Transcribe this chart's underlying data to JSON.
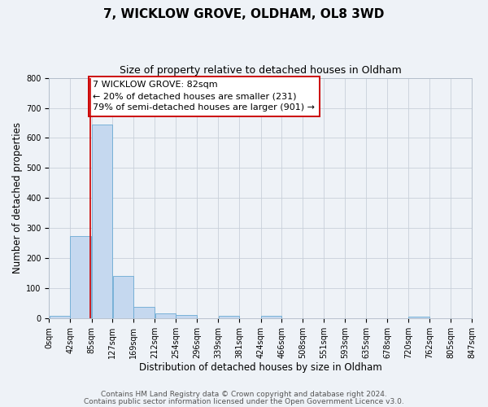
{
  "title": "7, WICKLOW GROVE, OLDHAM, OL8 3WD",
  "subtitle": "Size of property relative to detached houses in Oldham",
  "xlabel": "Distribution of detached houses by size in Oldham",
  "ylabel": "Number of detached properties",
  "bar_left_edges": [
    0,
    42,
    85,
    127,
    169,
    212,
    254,
    296,
    339,
    381,
    424,
    466,
    508,
    551,
    593,
    635,
    678,
    720,
    762,
    805
  ],
  "bar_heights": [
    8,
    275,
    645,
    140,
    38,
    18,
    12,
    0,
    10,
    0,
    8,
    0,
    0,
    0,
    0,
    0,
    0,
    6,
    0,
    0
  ],
  "bin_width": 42,
  "bar_color": "#c5d8ef",
  "bar_edge_color": "#6aaad4",
  "ylim": [
    0,
    800
  ],
  "yticks": [
    0,
    100,
    200,
    300,
    400,
    500,
    600,
    700,
    800
  ],
  "xtick_labels": [
    "0sqm",
    "42sqm",
    "85sqm",
    "127sqm",
    "169sqm",
    "212sqm",
    "254sqm",
    "296sqm",
    "339sqm",
    "381sqm",
    "424sqm",
    "466sqm",
    "508sqm",
    "551sqm",
    "593sqm",
    "635sqm",
    "678sqm",
    "720sqm",
    "762sqm",
    "805sqm",
    "847sqm"
  ],
  "xtick_positions": [
    0,
    42,
    85,
    127,
    169,
    212,
    254,
    296,
    339,
    381,
    424,
    466,
    508,
    551,
    593,
    635,
    678,
    720,
    762,
    805,
    847
  ],
  "xlim": [
    0,
    847
  ],
  "vline_x": 82,
  "vline_color": "#cc0000",
  "annotation_text": "7 WICKLOW GROVE: 82sqm\n← 20% of detached houses are smaller (231)\n79% of semi-detached houses are larger (901) →",
  "box_color": "#ffffff",
  "box_edge_color": "#cc0000",
  "grid_color": "#c8d0da",
  "bg_color": "#eef2f7",
  "footer_line1": "Contains HM Land Registry data © Crown copyright and database right 2024.",
  "footer_line2": "Contains public sector information licensed under the Open Government Licence v3.0.",
  "title_fontsize": 11,
  "subtitle_fontsize": 9,
  "axis_label_fontsize": 8.5,
  "tick_fontsize": 7,
  "annotation_fontsize": 8,
  "footer_fontsize": 6.5
}
